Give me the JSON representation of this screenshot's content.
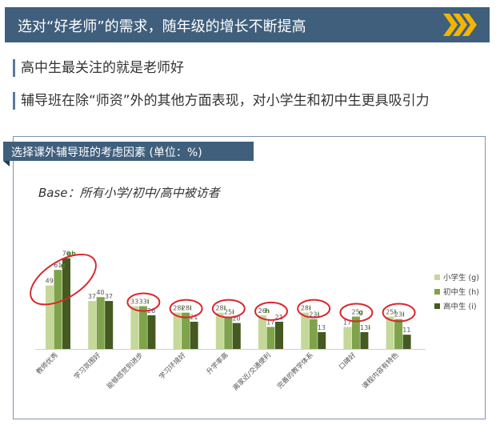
{
  "header": {
    "title": "选对“好老师”的需求，随年级的增长不断提高"
  },
  "bullets": [
    "高中生最关注的就是老师好",
    "辅导班在除“师资”外的其他方面表现，对小学生和初中生更具吸引力"
  ],
  "panel": {
    "title": "选择课外辅导班的考虑因素 (单位：%)",
    "base": "Base：所有小学/初中/高中被访者"
  },
  "colors": {
    "banner": "#3f5f7c",
    "chevron": "#f4b400",
    "primary": "#c5d89a",
    "middle": "#7ea34a",
    "high": "#445a20",
    "circle": "#d9262c"
  },
  "chart_data": {
    "type": "bar",
    "categories": [
      "教师优秀",
      "学习氛围好",
      "能够感觉到进步",
      "学习环境好",
      "升学率高",
      "离家近/交通便利",
      "完善的教学体系",
      "口碑好",
      "课程内容有特色"
    ],
    "series": [
      {
        "name": "小学生 (g)",
        "values": [
          49,
          37,
          33,
          28,
          28,
          26,
          28,
          17,
          25
        ]
      },
      {
        "name": "初中生 (h)",
        "values": [
          61,
          40,
          33,
          28,
          25,
          17,
          23,
          25,
          23
        ]
      },
      {
        "name": "高中生 (i)",
        "values": [
          70,
          37,
          26,
          21,
          20,
          21,
          13,
          13,
          11
        ]
      }
    ],
    "value_labels": [
      [
        "49",
        "61",
        "70"
      ],
      [
        "37",
        "40",
        "37"
      ],
      [
        "33",
        "33",
        "26"
      ],
      [
        "28",
        "28",
        "21"
      ],
      [
        "28",
        "25",
        "20"
      ],
      [
        "26",
        "17",
        "21"
      ],
      [
        "28",
        "23",
        "13"
      ],
      [
        "17",
        "25",
        "13"
      ],
      [
        "25",
        "23",
        "11"
      ]
    ],
    "significance": [
      {
        "category": 0,
        "series": 0,
        "text": ""
      },
      {
        "category": 0,
        "series": 1,
        "text": "g"
      },
      {
        "category": 0,
        "series": 2,
        "text": "gh"
      },
      {
        "category": 2,
        "series": 0,
        "text": ""
      },
      {
        "category": 2,
        "series": 1,
        "text": "i"
      },
      {
        "category": 3,
        "series": 0,
        "text": "i"
      },
      {
        "category": 3,
        "series": 1,
        "text": "i"
      },
      {
        "category": 4,
        "series": 0,
        "text": "i"
      },
      {
        "category": 4,
        "series": 1,
        "text": "i"
      },
      {
        "category": 5,
        "series": 0,
        "text": "h"
      },
      {
        "category": 6,
        "series": 0,
        "text": "i"
      },
      {
        "category": 6,
        "series": 1,
        "text": "i"
      },
      {
        "category": 7,
        "series": 1,
        "text": "g"
      },
      {
        "category": 7,
        "series": 2,
        "text": "i"
      },
      {
        "category": 8,
        "series": 0,
        "text": "i"
      },
      {
        "category": 8,
        "series": 1,
        "text": "i"
      }
    ],
    "circled_categories": [
      0,
      2,
      3,
      4,
      5,
      6,
      7,
      8
    ],
    "legend_position": "right",
    "ylim": [
      0,
      80
    ],
    "grid": false
  }
}
